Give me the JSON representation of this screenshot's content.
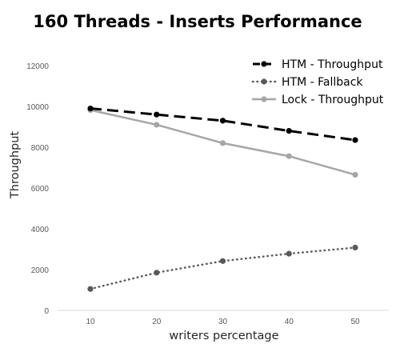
{
  "chart_data": {
    "type": "line",
    "title": "160 Threads - Inserts Performance",
    "xlabel": "writers percentage",
    "ylabel": "Throughput",
    "x": [
      10,
      20,
      30,
      40,
      50
    ],
    "x_ticks": [
      "10",
      "20",
      "30",
      "40",
      "50"
    ],
    "y_ticks": [
      "0",
      "2000",
      "4000",
      "6000",
      "8000",
      "10000",
      "12000"
    ],
    "ylim": [
      0,
      12000
    ],
    "grid": false,
    "legend_position": "top-right",
    "series": [
      {
        "name": "HTM - Throughput",
        "values": [
          9900,
          9600,
          9300,
          8800,
          8350
        ],
        "color": "#000000",
        "style": "dashed"
      },
      {
        "name": "HTM - Fallback",
        "values": [
          1050,
          1850,
          2420,
          2780,
          3080
        ],
        "color": "#595959",
        "style": "dotted"
      },
      {
        "name": "Lock - Throughput",
        "values": [
          9820,
          9100,
          8200,
          7560,
          6650
        ],
        "color": "#a6a6a6",
        "style": "solid"
      }
    ]
  }
}
